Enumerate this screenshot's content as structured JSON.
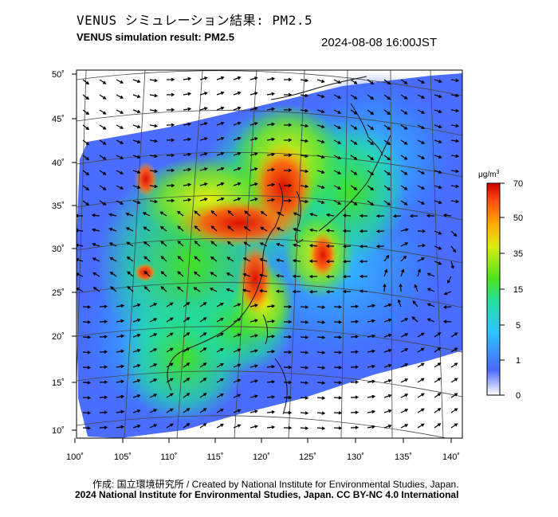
{
  "header": {
    "title_jp": "VENUS シミュレーション結果: PM2.5",
    "title_en": "VENUS simulation result: PM2.5",
    "datetime": "2024-08-08 16:00JST"
  },
  "map": {
    "lat_labels": [
      "50˚",
      "45˚",
      "40˚",
      "35˚",
      "30˚",
      "25˚",
      "20˚",
      "15˚",
      "10˚"
    ],
    "lon_labels": [
      "100˚",
      "105˚",
      "110˚",
      "115˚",
      "120˚",
      "125˚",
      "130˚",
      "135˚",
      "140˚"
    ],
    "lat_range": [
      9,
      51
    ],
    "lon_range": [
      100,
      141
    ]
  },
  "colorbar": {
    "unit_label": "μg/m",
    "unit_power": "3",
    "tick_labels": [
      "70",
      "50",
      "35",
      "15",
      "5",
      "1",
      "0"
    ],
    "colors": [
      "#ffffff",
      "#4a68ff",
      "#2ec4ff",
      "#22e0a0",
      "#4ee31c",
      "#d9ee10",
      "#ffb000",
      "#ff4a10",
      "#cc0000"
    ]
  },
  "footer": {
    "credit": "作成: 国立環境研究所 / Created by National Institute for Environmental Studies, Japan.",
    "copyright": "2024 National Institute for Environmental Studies, Japan. CC BY-NC 4.0 International"
  }
}
